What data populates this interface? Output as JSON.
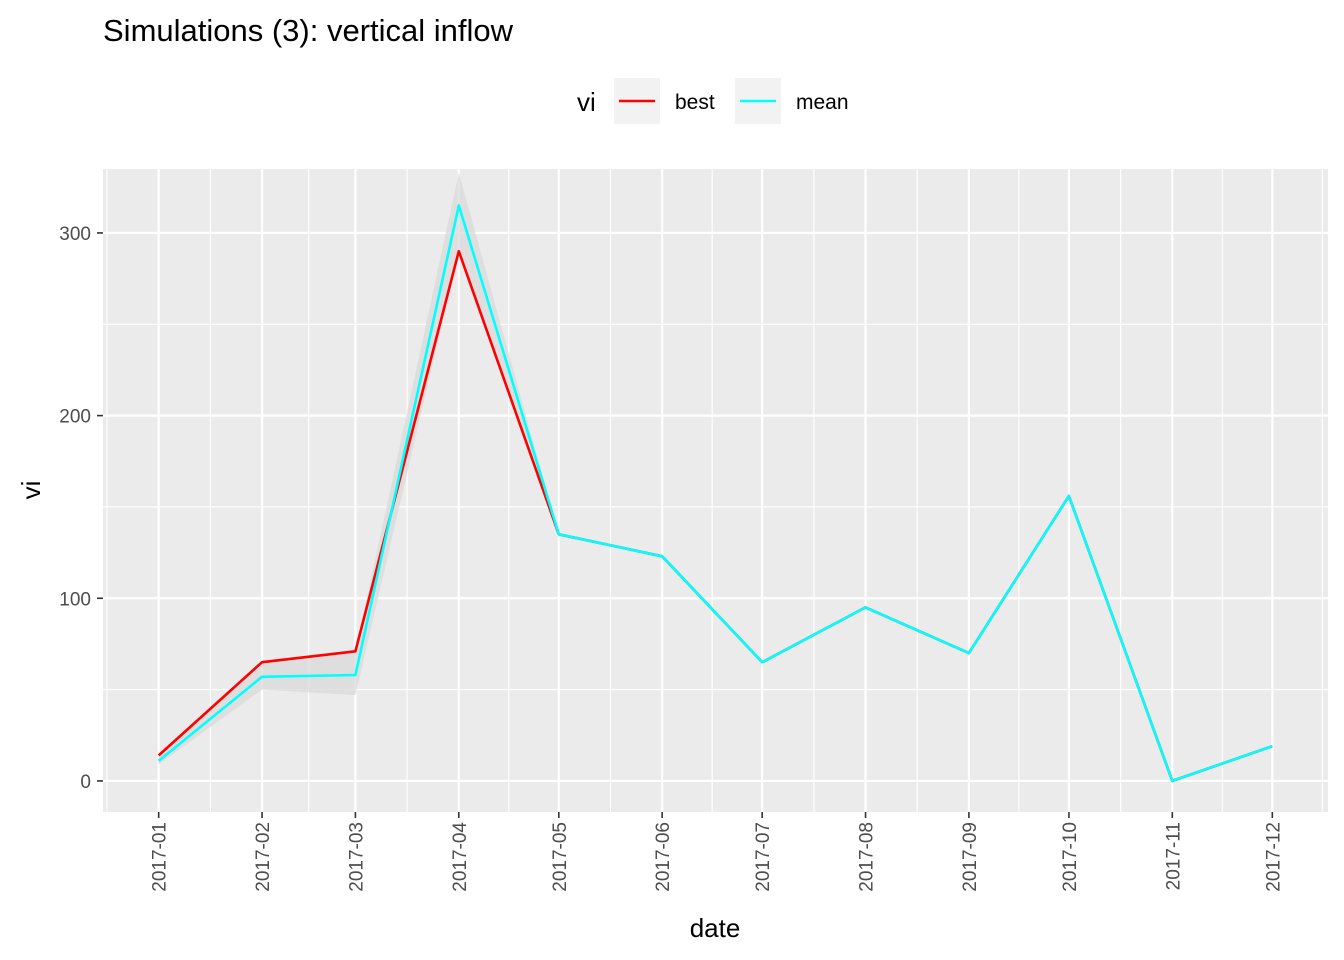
{
  "chart_data": {
    "type": "line",
    "title": "Simulations (3): vertical inflow",
    "xlabel": "date",
    "ylabel": "vi",
    "legend": {
      "title": "vi",
      "position": "top",
      "entries": [
        "best",
        "mean"
      ]
    },
    "x": [
      "2017-01-15",
      "2017-02-15",
      "2017-03-15",
      "2017-04-15",
      "2017-05-15",
      "2017-06-15",
      "2017-07-15",
      "2017-08-15",
      "2017-09-15",
      "2017-10-15",
      "2017-11-15",
      "2017-12-15"
    ],
    "x_tick_labels": [
      "2017-01",
      "2017-02",
      "2017-03",
      "2017-04",
      "2017-05",
      "2017-06",
      "2017-07",
      "2017-08",
      "2017-09",
      "2017-10",
      "2017-11",
      "2017-12"
    ],
    "y_ticks": [
      0,
      100,
      200,
      300
    ],
    "ylim": [
      -17,
      335
    ],
    "grid": true,
    "series": [
      {
        "name": "best",
        "color": "#ff0000",
        "values": [
          14,
          65,
          71,
          290,
          135,
          123,
          65,
          95,
          70,
          156,
          0,
          19
        ]
      },
      {
        "name": "mean",
        "color": "#00ffff",
        "values": [
          11,
          57,
          58,
          315,
          135,
          123,
          65,
          95,
          70,
          156,
          0,
          19
        ]
      }
    ],
    "ribbon": {
      "color": "#d9d9d9",
      "lower": [
        9,
        50,
        47,
        290,
        135,
        123,
        65,
        95,
        70,
        156,
        0,
        19
      ],
      "upper": [
        14,
        65,
        71,
        333,
        135,
        123,
        65,
        95,
        70,
        156,
        0,
        19
      ]
    }
  }
}
